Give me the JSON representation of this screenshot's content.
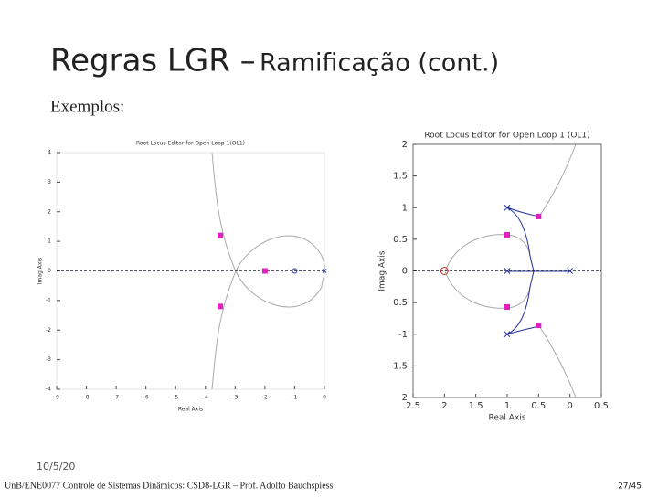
{
  "slide": {
    "title": "Regras LGR –",
    "title_suffix": "Ramificação (cont.)",
    "subtitle": "Exemplos:",
    "date": "10/5/20",
    "footer": "UnB/ENE0077 Controle de Sistemas Dinâmicos: CSD8-LGR – Prof. Adolfo Bauchspiess",
    "page": "27/45"
  },
  "chart_data": [
    {
      "type": "root-locus",
      "title": "Root Locus Editor for Open Loop 1(OL1)",
      "x_label": "Real Axis",
      "y_label": "Imag Axis",
      "xlim": [
        -9,
        0
      ],
      "ylim": [
        -4,
        4
      ],
      "xticks": [
        -9,
        -8,
        -7,
        -6,
        -5,
        -4,
        -3,
        -2,
        -1,
        0
      ],
      "yticks": [
        4,
        3,
        2,
        1,
        0,
        -1,
        -2,
        -3,
        -4
      ],
      "poles_x": [
        0
      ],
      "poles_y": [
        0
      ],
      "zeros_x": [
        -1
      ],
      "zeros_y": [
        0
      ],
      "markers_x": [
        -3.5,
        -3.5,
        -2
      ],
      "markers_y": [
        1.2,
        -1.2,
        0
      ],
      "marker_color": "#e020c0"
    },
    {
      "type": "root-locus",
      "title": "Root Locus Editor for Open Loop 1 (OL1)",
      "x_label": "Real Axis",
      "y_label": "Imag Axis",
      "xlim": [
        -2.5,
        0.5
      ],
      "ylim": [
        -2,
        2
      ],
      "xticks": [
        {
          "value": -2.5,
          "label": "2.5"
        },
        {
          "value": -2,
          "label": "2"
        },
        {
          "value": -1.5,
          "label": "1.5"
        },
        {
          "value": -1,
          "label": "1"
        },
        {
          "value": -0.5,
          "label": "0.5"
        },
        0,
        {
          "value": 0.5,
          "label": "0.5"
        }
      ],
      "yticks": [
        2,
        1.5,
        1,
        0.5,
        0,
        {
          "value": -0.5,
          "label": "0.5"
        },
        -1,
        -1.5,
        {
          "value": -2,
          "label": "2"
        }
      ],
      "poles_x": [
        -1,
        -1,
        -1,
        0
      ],
      "poles_y": [
        1,
        -1,
        0,
        0
      ],
      "zeros_x": [
        -2
      ],
      "zeros_y": [
        0
      ],
      "markers_x": [
        -1,
        -0.5,
        -1,
        -0.5
      ],
      "markers_y": [
        0.57,
        0.86,
        -0.57,
        -0.86
      ],
      "marker_color": "#e020c0"
    }
  ]
}
